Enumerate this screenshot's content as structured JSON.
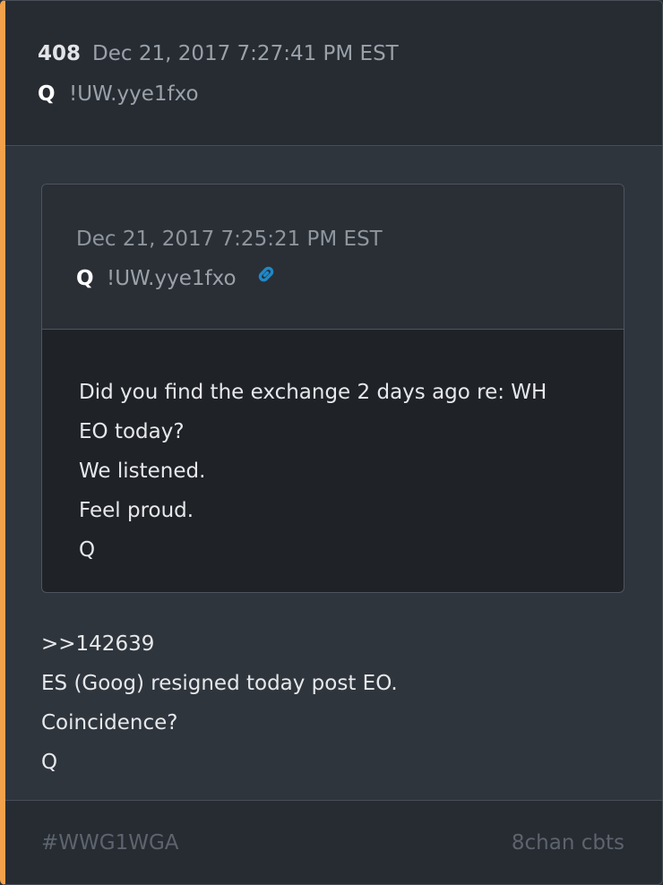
{
  "post": {
    "number": "408",
    "timestamp": "Dec 21, 2017 7:27:41 PM EST",
    "author": "Q",
    "tripcode": "!UW.yye1fxo"
  },
  "quoted_post": {
    "timestamp": "Dec 21, 2017 7:25:21 PM EST",
    "author": "Q",
    "tripcode": "!UW.yye1fxo",
    "link_icon": "link-icon",
    "lines": [
      "Did you find the exchange 2 days ago re: WH",
      "EO today?",
      "We listened.",
      "Feel proud.",
      "Q"
    ]
  },
  "body": {
    "lines": [
      ">>142639",
      "ES (Goog) resigned today post EO.",
      "Coincidence?",
      "Q"
    ]
  },
  "footer": {
    "hashtag": "#WWG1WGA",
    "source": "8chan cbts"
  },
  "colors": {
    "accent_stripe": "#f2a24b",
    "link_icon": "#1e88c9"
  }
}
